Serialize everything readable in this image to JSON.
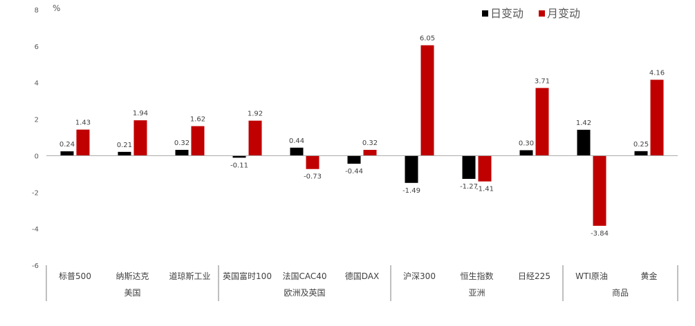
{
  "chart_data": {
    "type": "bar",
    "unit_label": "%",
    "ylim": [
      -6,
      8
    ],
    "yticks": [
      8,
      6,
      4,
      2,
      0,
      -2,
      -4,
      -6
    ],
    "grid": false,
    "legend_position": "top-right",
    "categories": [
      "标普500",
      "纳斯达克",
      "道琼斯工业",
      "英国富时100",
      "法国CAC40",
      "德国DAX",
      "沪深300",
      "恒生指数",
      "日经225",
      "WTI原油",
      "黄金"
    ],
    "groups": [
      {
        "label": "美国",
        "count": 3
      },
      {
        "label": "欧洲及英国",
        "count": 3
      },
      {
        "label": "亚洲",
        "count": 3
      },
      {
        "label": "商品",
        "count": 2
      }
    ],
    "series": [
      {
        "name": "日变动",
        "color": "#000000",
        "values": [
          0.24,
          0.21,
          0.32,
          -0.11,
          0.44,
          -0.44,
          -1.49,
          -1.27,
          0.3,
          1.42,
          0.25
        ],
        "labels": [
          "0.24",
          "0.21",
          "0.32",
          "-0.11",
          "0.44",
          "-0.44",
          "-1.49",
          "-1.27",
          "0.30",
          "1.42",
          "0.25"
        ]
      },
      {
        "name": "月变动",
        "color": "#C00000",
        "values": [
          1.43,
          1.94,
          1.62,
          1.92,
          -0.73,
          0.32,
          6.05,
          -1.41,
          3.71,
          -3.84,
          4.16
        ],
        "labels": [
          "1.43",
          "1.94",
          "1.62",
          "1.92",
          "-0.73",
          "0.32",
          "6.05",
          "-1.41",
          "3.71",
          "-3.84",
          "4.16"
        ]
      }
    ]
  }
}
